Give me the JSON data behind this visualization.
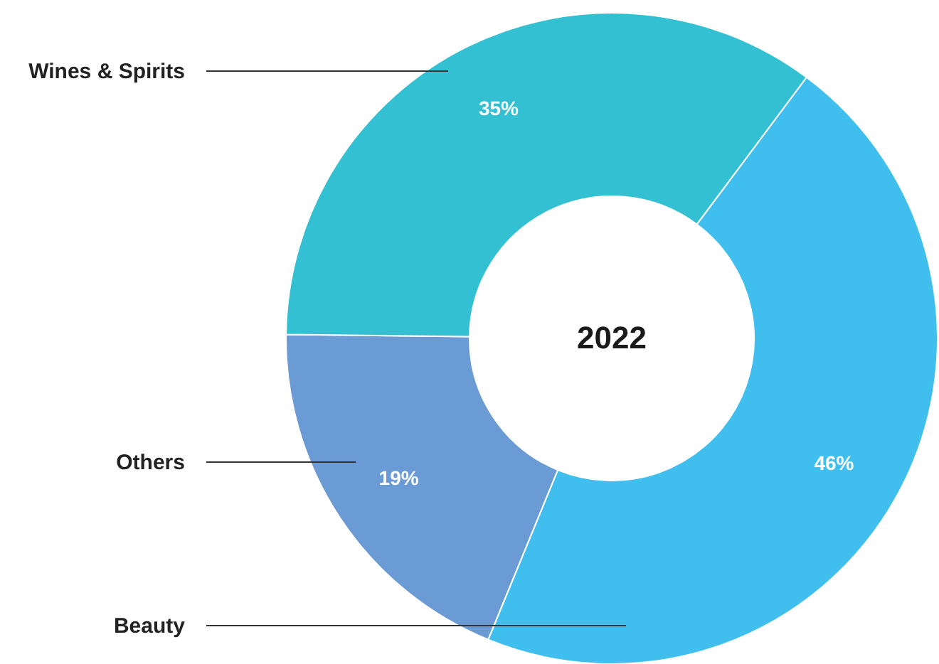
{
  "chart_data": {
    "type": "donut",
    "categories": [
      "Beauty",
      "Others",
      "Wines & Spirits"
    ],
    "values": [
      46,
      19,
      35
    ],
    "colors": [
      "#40bfef",
      "#6a9bd4",
      "#33c0d3"
    ],
    "value_labels": [
      "46%",
      "19%",
      "35%"
    ],
    "annotations": [
      "2022"
    ]
  }
}
